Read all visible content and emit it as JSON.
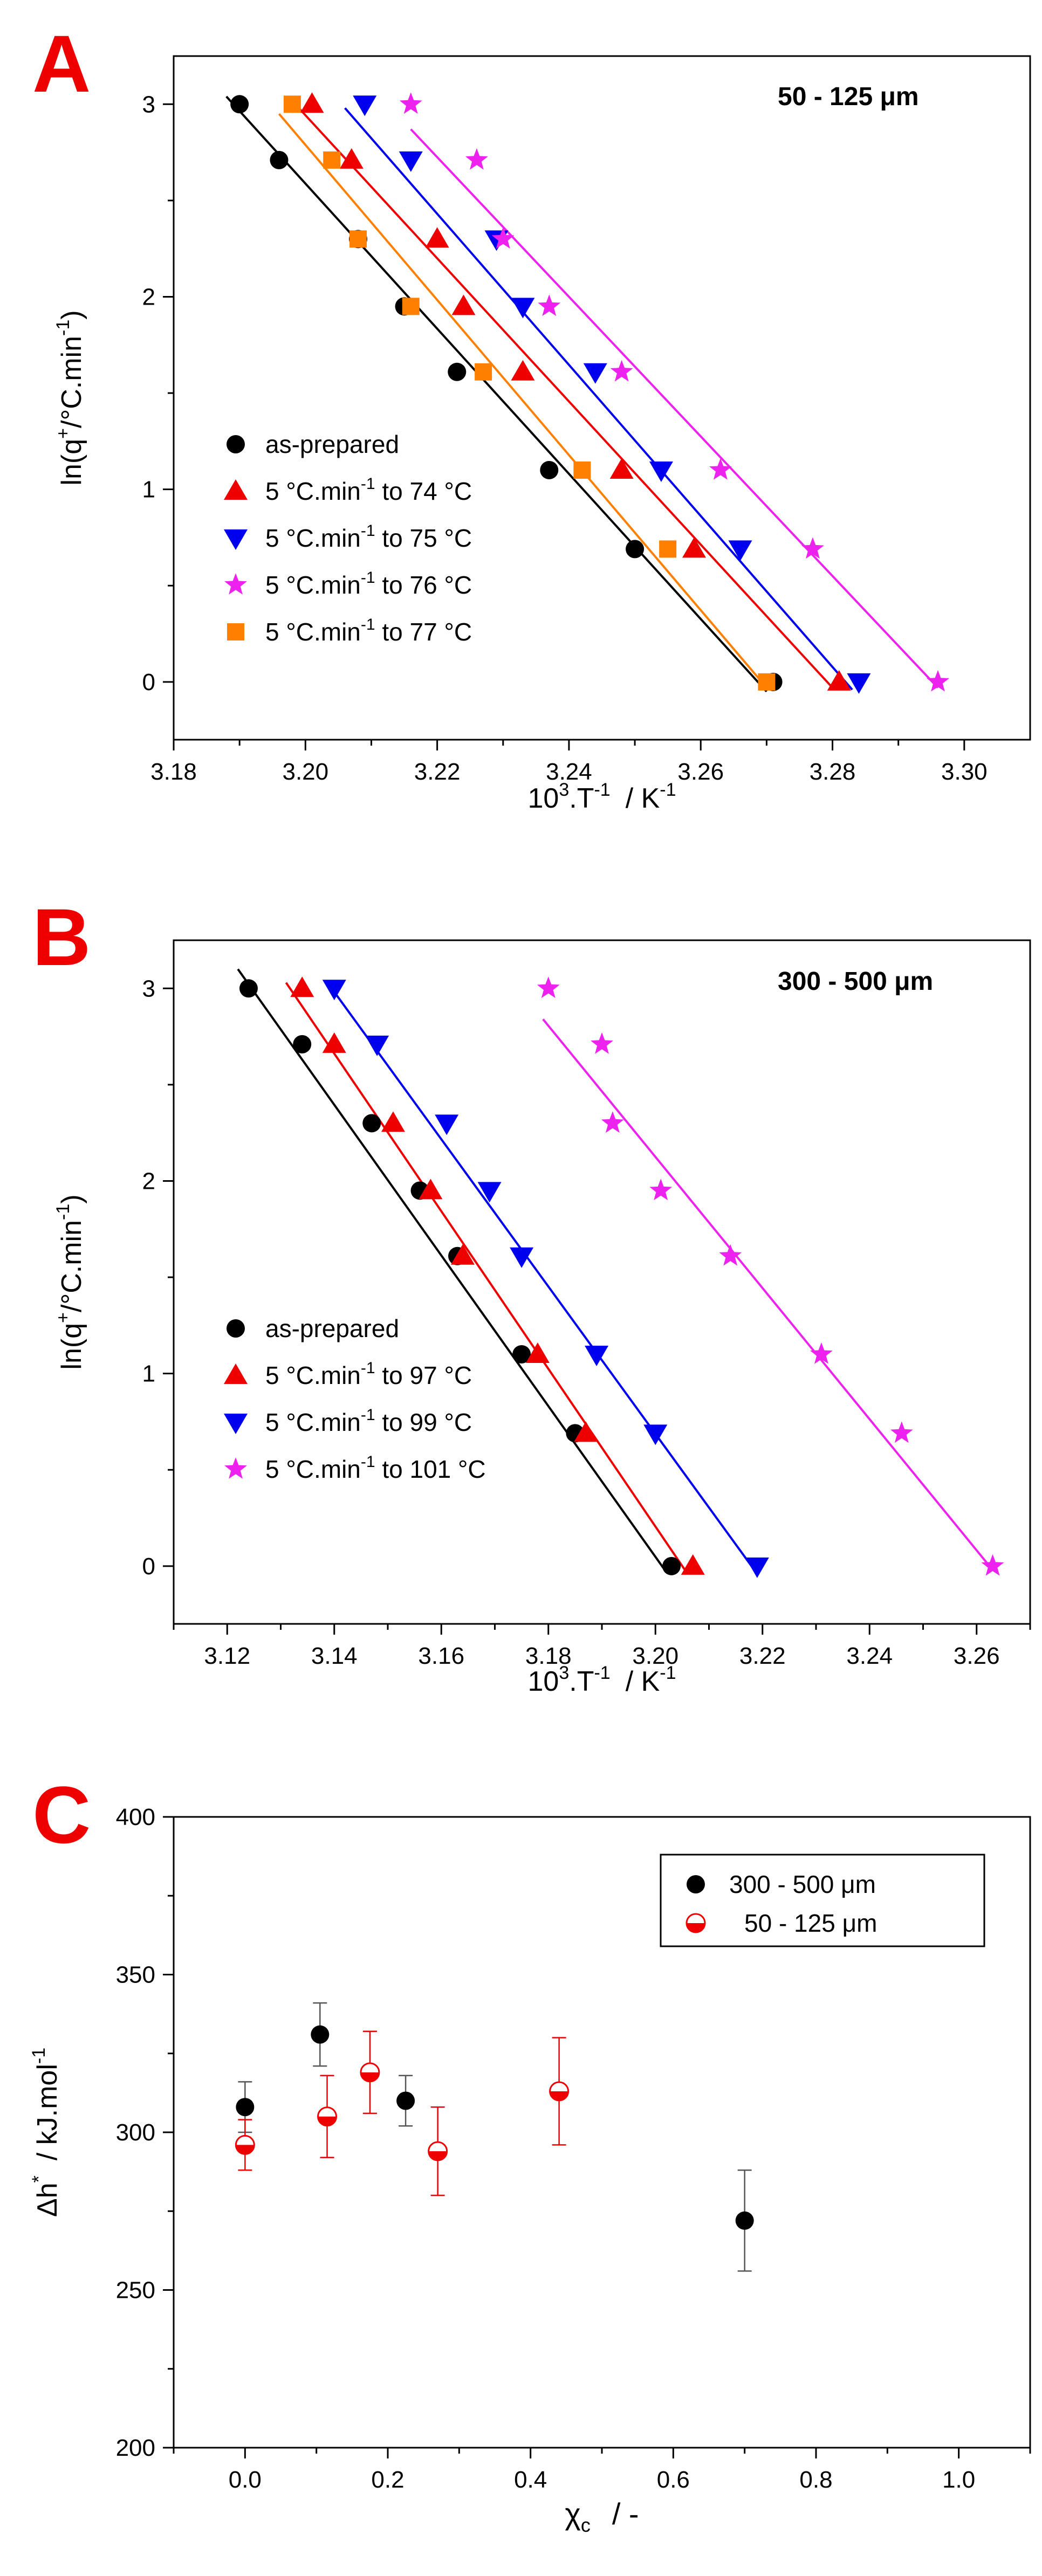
{
  "chart_data": [
    {
      "panel_label": "A",
      "type": "scatter",
      "annotation": "50 - 125 μm",
      "xlabel_main": "10",
      "xlabel_sup1": "3",
      "xlabel_mid": ".T",
      "xlabel_sup2": "-1",
      "xlabel_unit": "/   K",
      "xlabel_sup3": "-1",
      "ylabel_main": "ln(q",
      "ylabel_sup1": "+",
      "ylabel_mid": "/°C.min",
      "ylabel_sup2": "-1",
      "ylabel_end": ")",
      "xlim": [
        3.18,
        3.31
      ],
      "ylim": [
        -0.3,
        3.25
      ],
      "xticks": [
        3.18,
        3.19,
        3.2,
        3.21,
        3.22,
        3.23,
        3.24,
        3.25,
        3.26,
        3.27,
        3.28,
        3.29,
        3.3
      ],
      "xtick_labels": [
        "3.18",
        "3.20",
        "3.22",
        "3.24",
        "3.26",
        "3.28",
        "3.30"
      ],
      "yticks": [
        0,
        0.5,
        1,
        1.5,
        2,
        2.5,
        3
      ],
      "ytick_labels": [
        "0",
        "1",
        "2",
        "3"
      ],
      "legend": [
        "as-prepared",
        "5 °C.min-1 to 74 °C",
        "5 °C.min-1 to 75 °C",
        "5 °C.min-1 to 76 °C",
        "5 °C.min-1 to 77 °C"
      ],
      "series": [
        {
          "name": "as-prepared",
          "legend_pre": "as-prepared",
          "legend_sup": "",
          "legend_post": "",
          "marker": "circle",
          "color": "#000000",
          "x": [
            3.19,
            3.196,
            3.208,
            3.215,
            3.223,
            3.237,
            3.25,
            3.271
          ],
          "y": [
            3.0,
            2.71,
            2.3,
            1.95,
            1.61,
            1.1,
            0.69,
            0.0
          ],
          "fit": [
            [
              3.188,
              3.04
            ],
            [
              3.27,
              -0.05
            ]
          ]
        },
        {
          "name": "5 °C.min-1 to 74 °C",
          "legend_pre": "5 °C.min",
          "legend_sup": "-1",
          "legend_post": " to 74 °C",
          "marker": "triangle-up",
          "color": "#ee0000",
          "x": [
            3.201,
            3.207,
            3.22,
            3.224,
            3.233,
            3.248,
            3.259,
            3.281
          ],
          "y": [
            3.0,
            2.71,
            2.3,
            1.95,
            1.61,
            1.1,
            0.69,
            0.0
          ],
          "fit": [
            [
              3.199,
              2.98
            ],
            [
              3.28,
              -0.03
            ]
          ]
        },
        {
          "name": "5 °C.min-1 to 75 °C",
          "legend_pre": "5 °C.min",
          "legend_sup": "-1",
          "legend_post": " to 75 °C",
          "marker": "triangle-down",
          "color": "#0000ee",
          "x": [
            3.209,
            3.216,
            3.229,
            3.233,
            3.244,
            3.254,
            3.266,
            3.284
          ],
          "y": [
            3.0,
            2.71,
            2.3,
            1.95,
            1.61,
            1.1,
            0.69,
            0.0
          ],
          "fit": [
            [
              3.206,
              2.98
            ],
            [
              3.283,
              -0.04
            ]
          ]
        },
        {
          "name": "5 °C.min-1 to 76 °C",
          "legend_pre": "5 °C.min",
          "legend_sup": "-1",
          "legend_post": " to 76 °C",
          "marker": "star",
          "color": "#ee22ee",
          "x": [
            3.216,
            3.226,
            3.23,
            3.237,
            3.248,
            3.263,
            3.277,
            3.296
          ],
          "y": [
            3.0,
            2.71,
            2.3,
            1.95,
            1.61,
            1.1,
            0.69,
            0.0
          ],
          "fit": [
            [
              3.216,
              2.87
            ],
            [
              3.296,
              -0.03
            ]
          ]
        },
        {
          "name": "5 °C.min-1 to 77 °C",
          "legend_pre": "5 °C.min",
          "legend_sup": "-1",
          "legend_post": " to 77 °C",
          "marker": "square",
          "color": "#ff8000",
          "x": [
            3.198,
            3.204,
            3.208,
            3.216,
            3.227,
            3.242,
            3.255,
            3.27
          ],
          "y": [
            3.0,
            2.71,
            2.3,
            1.95,
            1.61,
            1.1,
            0.69,
            0.0
          ],
          "fit": [
            [
              3.196,
              2.95
            ],
            [
              3.27,
              -0.03
            ]
          ]
        }
      ]
    },
    {
      "panel_label": "B",
      "type": "scatter",
      "annotation": "300 - 500 μm",
      "xlabel_main": "10",
      "xlabel_sup1": "3",
      "xlabel_mid": ".T",
      "xlabel_sup2": "-1",
      "xlabel_unit": "/   K",
      "xlabel_sup3": "-1",
      "ylabel_main": "ln(q",
      "ylabel_sup1": "+",
      "ylabel_mid": "/°C.min",
      "ylabel_sup2": "-1",
      "ylabel_end": ")",
      "xlim": [
        3.11,
        3.27
      ],
      "ylim": [
        -0.3,
        3.25
      ],
      "xticks": [
        3.11,
        3.12,
        3.13,
        3.14,
        3.15,
        3.16,
        3.17,
        3.18,
        3.19,
        3.2,
        3.21,
        3.22,
        3.23,
        3.24,
        3.25,
        3.26,
        3.27
      ],
      "xtick_labels": [
        "3.12",
        "3.14",
        "3.16",
        "3.18",
        "3.20",
        "3.22",
        "3.24",
        "3.26"
      ],
      "yticks": [
        0,
        0.5,
        1,
        1.5,
        2,
        2.5,
        3
      ],
      "ytick_labels": [
        "0",
        "1",
        "2",
        "3"
      ],
      "legend": [
        "as-prepared",
        "5 °C.min-1 to  97 °C",
        "5 °C.min-1 to  99 °C",
        "5 °C.min-1 to 101 °C"
      ],
      "series": [
        {
          "name": "as-prepared",
          "legend_pre": "as-prepared",
          "legend_sup": "",
          "legend_post": "",
          "marker": "circle",
          "color": "#000000",
          "x": [
            3.124,
            3.134,
            3.147,
            3.156,
            3.163,
            3.175,
            3.185,
            3.203
          ],
          "y": [
            3.0,
            2.71,
            2.3,
            1.95,
            1.61,
            1.1,
            0.69,
            0.0
          ],
          "fit": [
            [
              3.122,
              3.1
            ],
            [
              3.202,
              -0.03
            ]
          ]
        },
        {
          "name": "5 °C.min-1 to  97 °C",
          "legend_pre": "5 °C.min",
          "legend_sup": "-1",
          "legend_post": " to  97 °C",
          "marker": "triangle-up",
          "color": "#ee0000",
          "x": [
            3.134,
            3.14,
            3.151,
            3.158,
            3.164,
            3.178,
            3.187,
            3.207
          ],
          "y": [
            3.0,
            2.71,
            2.3,
            1.95,
            1.61,
            1.1,
            0.69,
            0.0
          ],
          "fit": [
            [
              3.131,
              3.03
            ],
            [
              3.206,
              -0.04
            ]
          ]
        },
        {
          "name": "5 °C.min-1 to  99 °C",
          "legend_pre": "5 °C.min",
          "legend_sup": "-1",
          "legend_post": " to  99 °C",
          "marker": "triangle-down",
          "color": "#0000ee",
          "x": [
            3.14,
            3.148,
            3.161,
            3.169,
            3.175,
            3.189,
            3.2,
            3.219
          ],
          "y": [
            3.0,
            2.71,
            2.3,
            1.95,
            1.61,
            1.1,
            0.69,
            0.0
          ],
          "fit": [
            [
              3.139,
              3.02
            ],
            [
              3.219,
              -0.04
            ]
          ]
        },
        {
          "name": "5 °C.min-1 to 101 °C",
          "legend_pre": "5 °C.min",
          "legend_sup": "-1",
          "legend_post": " to 101 °C",
          "marker": "star",
          "color": "#ee22ee",
          "x": [
            3.18,
            3.19,
            3.192,
            3.201,
            3.214,
            3.231,
            3.246,
            3.263
          ],
          "y": [
            3.0,
            2.71,
            2.3,
            1.95,
            1.61,
            1.1,
            0.69,
            0.0
          ],
          "fit": [
            [
              3.179,
              2.84
            ],
            [
              3.263,
              -0.02
            ]
          ]
        }
      ]
    },
    {
      "panel_label": "C",
      "type": "scatter",
      "xlabel_main": "χ",
      "xlabel_sub": "c",
      "xlabel_unit": "/   -",
      "ylabel_main": "Δh",
      "ylabel_sup1": "*",
      "ylabel_unit": "/   kJ.mol",
      "ylabel_sup2": "-1",
      "xlim": [
        -0.1,
        1.1
      ],
      "ylim": [
        200,
        400
      ],
      "xticks": [
        -0.1,
        0.0,
        0.1,
        0.2,
        0.3,
        0.4,
        0.5,
        0.6,
        0.7,
        0.8,
        0.9,
        1.0,
        1.1
      ],
      "xtick_labels": [
        "0.0",
        "0.2",
        "0.4",
        "0.6",
        "0.8",
        "1.0"
      ],
      "yticks": [
        200,
        225,
        250,
        275,
        300,
        325,
        350,
        375,
        400
      ],
      "ytick_labels": [
        "200",
        "250",
        "300",
        "350",
        "400"
      ],
      "legend": [
        "300 - 500 μm",
        "50 - 125 μm"
      ],
      "series": [
        {
          "name": "300 - 500 μm",
          "marker": "circle",
          "color": "#000000",
          "err_color": "#555555",
          "x": [
            0.0,
            0.105,
            0.225,
            0.7
          ],
          "y": [
            308,
            331,
            310,
            272
          ],
          "err": [
            8,
            10,
            8,
            16
          ]
        },
        {
          "name": "50 - 125 μm",
          "marker": "half-circle",
          "color": "#ee0000",
          "err_color": "#ee0000",
          "x": [
            0.0,
            0.115,
            0.175,
            0.27,
            0.44
          ],
          "y": [
            296,
            305,
            319,
            294,
            313
          ],
          "err": [
            8,
            13,
            13,
            14,
            17
          ]
        }
      ]
    }
  ]
}
